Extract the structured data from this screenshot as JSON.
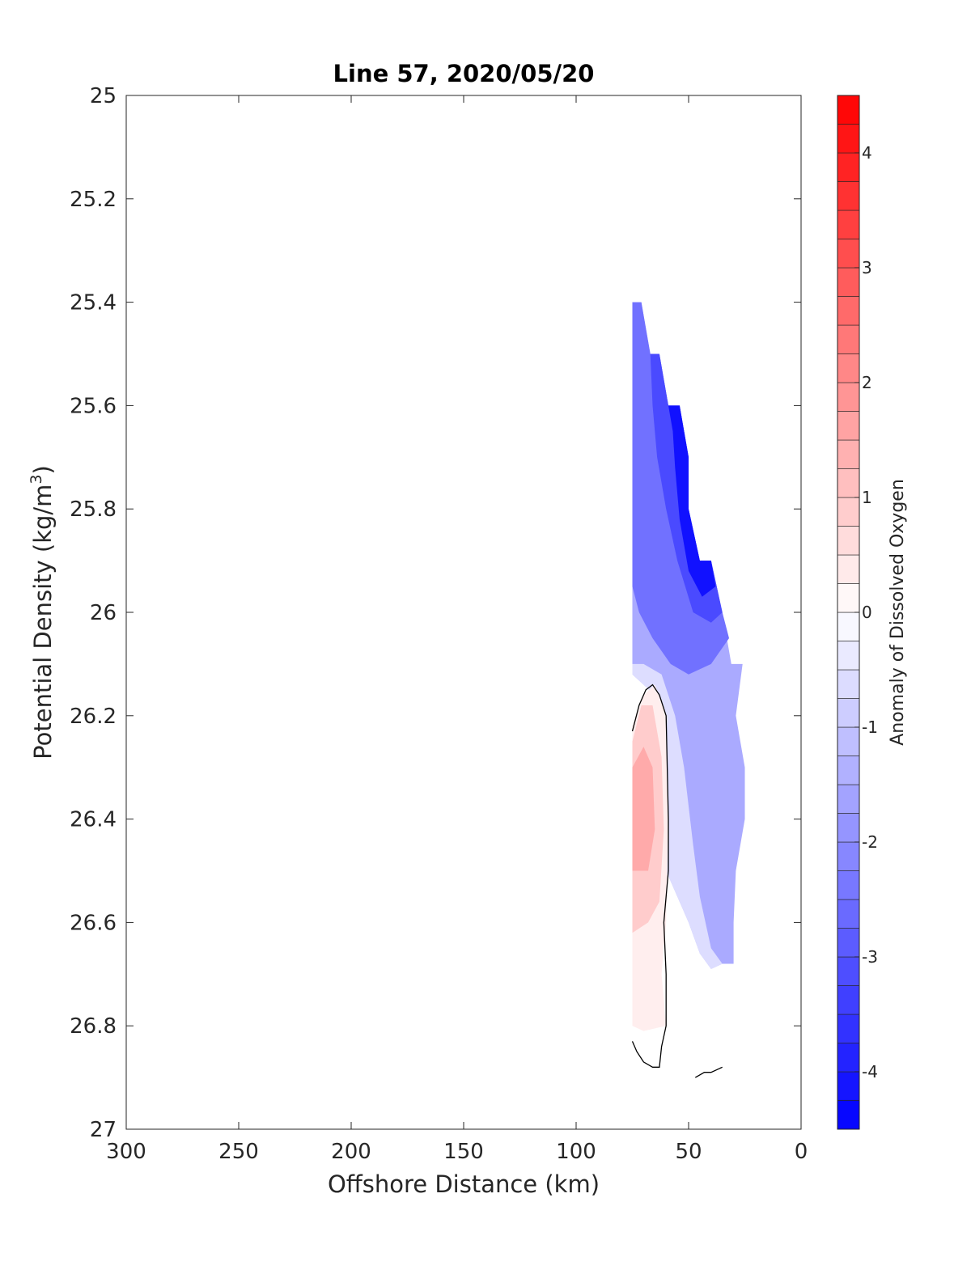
{
  "chart_data": {
    "type": "contour",
    "title": "Line 57, 2020/05/20",
    "xlabel": "Offshore Distance (km)",
    "ylabel_main": "Potential Density (kg/m",
    "ylabel_sup": "3",
    "ylabel_close": ")",
    "xlim": [
      300,
      0
    ],
    "ylim": [
      25,
      27
    ],
    "x_reversed": true,
    "y_reversed": true,
    "x_ticks": [
      300,
      250,
      200,
      150,
      100,
      50,
      0
    ],
    "x_tick_labels": [
      "300",
      "250",
      "200",
      "150",
      "100",
      "50",
      "0"
    ],
    "y_ticks": [
      25,
      25.2,
      25.4,
      25.6,
      25.8,
      26,
      26.2,
      26.4,
      26.6,
      26.8,
      27
    ],
    "y_tick_labels": [
      "25",
      "25.2",
      "25.4",
      "25.6",
      "25.8",
      "26",
      "26.2",
      "26.4",
      "26.6",
      "26.8",
      "27"
    ],
    "grid": false,
    "colorbar": {
      "label": "Anomaly of Dissolved Oxygen",
      "range": [
        -4.5,
        4.5
      ],
      "levels": 36,
      "ticks": [
        4,
        3,
        2,
        1,
        0,
        -1,
        -2,
        -3,
        -4
      ],
      "tick_labels": [
        "4",
        "3",
        "2",
        "1",
        "0",
        "-1",
        "-2",
        "-3",
        "-4"
      ],
      "colormap": "blue-white-red",
      "color_low": "#0000ff",
      "color_mid": "#ffffff",
      "color_high": "#ff0000"
    },
    "data_region_boundary": [
      [
        75,
        25.4
      ],
      [
        71,
        25.4
      ],
      [
        67,
        25.5
      ],
      [
        63,
        25.5
      ],
      [
        59,
        25.6
      ],
      [
        54,
        25.6
      ],
      [
        50,
        25.7
      ],
      [
        50,
        25.8
      ],
      [
        45,
        25.9
      ],
      [
        40,
        25.9
      ],
      [
        35,
        26.0
      ],
      [
        31,
        26.1
      ],
      [
        26,
        26.1
      ],
      [
        29,
        26.2
      ],
      [
        25,
        26.3
      ],
      [
        25,
        26.4
      ],
      [
        29,
        26.5
      ],
      [
        30,
        26.6
      ],
      [
        30,
        26.68
      ],
      [
        35,
        26.68
      ],
      [
        40,
        26.69
      ],
      [
        45,
        26.66
      ],
      [
        50,
        26.6
      ],
      [
        55,
        26.55
      ],
      [
        60,
        26.5
      ],
      [
        62,
        26.7
      ],
      [
        60,
        26.8
      ],
      [
        70,
        26.81
      ],
      [
        75,
        26.8
      ],
      [
        75,
        25.4
      ]
    ],
    "fill_bands": [
      {
        "value": -1.5,
        "polygon": [
          [
            75,
            25.4
          ],
          [
            71,
            25.4
          ],
          [
            67,
            25.5
          ],
          [
            63,
            25.5
          ],
          [
            59,
            25.6
          ],
          [
            54,
            25.6
          ],
          [
            50,
            25.7
          ],
          [
            50,
            25.8
          ],
          [
            45,
            25.9
          ],
          [
            40,
            25.9
          ],
          [
            35,
            26.0
          ],
          [
            31,
            26.1
          ],
          [
            26,
            26.1
          ],
          [
            29,
            26.2
          ],
          [
            25,
            26.3
          ],
          [
            25,
            26.4
          ],
          [
            29,
            26.5
          ],
          [
            30,
            26.6
          ],
          [
            30,
            26.68
          ],
          [
            35,
            26.68
          ],
          [
            40,
            26.69
          ],
          [
            45,
            26.66
          ],
          [
            50,
            26.6
          ],
          [
            55,
            26.55
          ],
          [
            60,
            26.5
          ],
          [
            62,
            26.2
          ],
          [
            65,
            26.16
          ],
          [
            70,
            26.14
          ],
          [
            75,
            26.12
          ]
        ]
      },
      {
        "value": -2.5,
        "polygon": [
          [
            75,
            25.4
          ],
          [
            71,
            25.4
          ],
          [
            67,
            25.5
          ],
          [
            63,
            25.5
          ],
          [
            59,
            25.6
          ],
          [
            54,
            25.6
          ],
          [
            50,
            25.7
          ],
          [
            50,
            25.8
          ],
          [
            45,
            25.9
          ],
          [
            40,
            25.9
          ],
          [
            35,
            26.0
          ],
          [
            32,
            26.05
          ],
          [
            40,
            26.1
          ],
          [
            50,
            26.12
          ],
          [
            58,
            26.1
          ],
          [
            66,
            26.05
          ],
          [
            72,
            26.0
          ],
          [
            75,
            25.95
          ]
        ]
      },
      {
        "value": -3.2,
        "polygon": [
          [
            67,
            25.5
          ],
          [
            63,
            25.5
          ],
          [
            59,
            25.6
          ],
          [
            54,
            25.6
          ],
          [
            50,
            25.7
          ],
          [
            50,
            25.8
          ],
          [
            45,
            25.9
          ],
          [
            40,
            25.9
          ],
          [
            35,
            26.0
          ],
          [
            40,
            26.02
          ],
          [
            48,
            26.0
          ],
          [
            55,
            25.9
          ],
          [
            60,
            25.8
          ],
          [
            64,
            25.7
          ],
          [
            66,
            25.6
          ]
        ]
      },
      {
        "value": -4.2,
        "polygon": [
          [
            59,
            25.6
          ],
          [
            54,
            25.6
          ],
          [
            50,
            25.7
          ],
          [
            50,
            25.8
          ],
          [
            45,
            25.9
          ],
          [
            40,
            25.9
          ],
          [
            38,
            25.95
          ],
          [
            44,
            25.97
          ],
          [
            50,
            25.92
          ],
          [
            54,
            25.82
          ],
          [
            56,
            25.72
          ],
          [
            57,
            25.65
          ]
        ]
      },
      {
        "value": -0.6,
        "polygon": [
          [
            75,
            26.1
          ],
          [
            70,
            26.1
          ],
          [
            62,
            26.12
          ],
          [
            56,
            26.2
          ],
          [
            52,
            26.3
          ],
          [
            48,
            26.45
          ],
          [
            45,
            26.55
          ],
          [
            40,
            26.65
          ],
          [
            35,
            26.68
          ],
          [
            40,
            26.69
          ],
          [
            45,
            26.66
          ],
          [
            50,
            26.6
          ],
          [
            55,
            26.55
          ],
          [
            60,
            26.5
          ],
          [
            62,
            26.2
          ],
          [
            65,
            26.16
          ],
          [
            70,
            26.14
          ],
          [
            75,
            26.12
          ]
        ]
      },
      {
        "value": 0.3,
        "polygon": [
          [
            75,
            26.22
          ],
          [
            70,
            26.16
          ],
          [
            65,
            26.14
          ],
          [
            60,
            26.2
          ],
          [
            59,
            26.4
          ],
          [
            60,
            26.6
          ],
          [
            62,
            26.7
          ],
          [
            60,
            26.8
          ],
          [
            70,
            26.81
          ],
          [
            75,
            26.8
          ]
        ]
      },
      {
        "value": 0.9,
        "polygon": [
          [
            75,
            26.25
          ],
          [
            71,
            26.18
          ],
          [
            66,
            26.18
          ],
          [
            62,
            26.28
          ],
          [
            61,
            26.42
          ],
          [
            63,
            26.56
          ],
          [
            68,
            26.6
          ],
          [
            75,
            26.62
          ]
        ]
      },
      {
        "value": 1.5,
        "polygon": [
          [
            75,
            26.3
          ],
          [
            70,
            26.26
          ],
          [
            66,
            26.3
          ],
          [
            65,
            26.42
          ],
          [
            68,
            26.5
          ],
          [
            75,
            26.5
          ]
        ]
      }
    ],
    "contour_lines": [
      {
        "value": 0,
        "points": [
          [
            75,
            26.23
          ],
          [
            72,
            26.18
          ],
          [
            69,
            26.15
          ],
          [
            66,
            26.14
          ],
          [
            63,
            26.16
          ],
          [
            60,
            26.2
          ],
          [
            59,
            26.4
          ],
          [
            59,
            26.5
          ],
          [
            61,
            26.6
          ],
          [
            60,
            26.7
          ],
          [
            60,
            26.8
          ],
          [
            62,
            26.84
          ],
          [
            63,
            26.88
          ],
          [
            66,
            26.88
          ],
          [
            70,
            26.87
          ],
          [
            73,
            26.85
          ],
          [
            75,
            26.83
          ]
        ]
      },
      {
        "value": 0,
        "points": [
          [
            47,
            26.9
          ],
          [
            43,
            26.89
          ],
          [
            40,
            26.89
          ],
          [
            35,
            26.88
          ]
        ]
      }
    ]
  }
}
